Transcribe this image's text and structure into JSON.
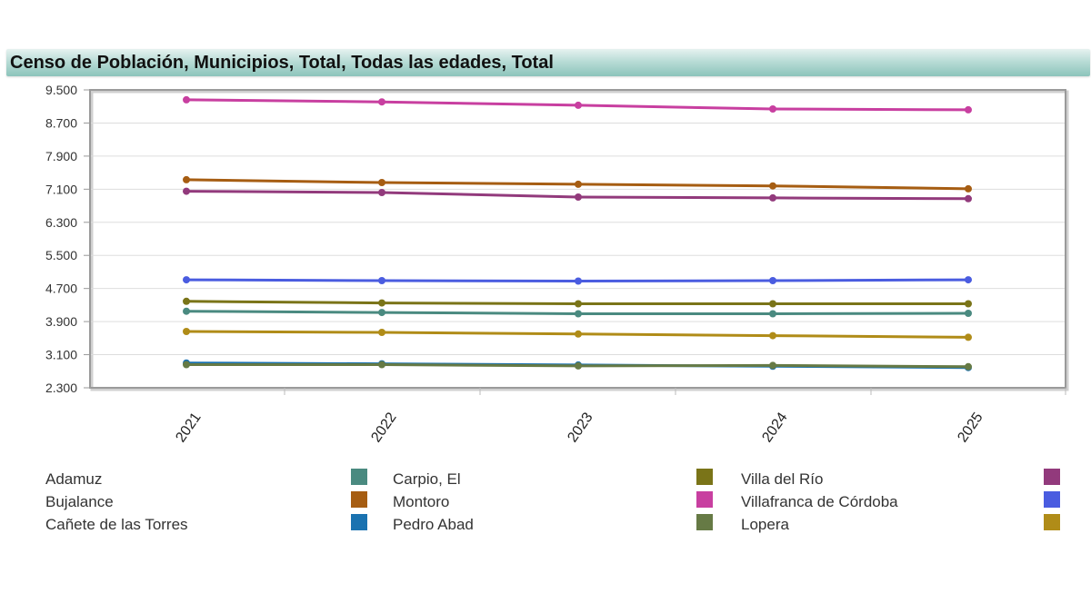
{
  "header": {
    "title": "Censo de Población, Municipios, Total, Todas las edades, Total"
  },
  "chart_data": {
    "type": "line",
    "title": "Censo de Población, Municipios, Total, Todas las edades, Total",
    "xlabel": "",
    "ylabel": "",
    "x": [
      "2021",
      "2022",
      "2023",
      "2024",
      "2025"
    ],
    "ylim": [
      2300,
      9500
    ],
    "yticks": [
      "9.500",
      "8.700",
      "7.900",
      "7.100",
      "6.300",
      "5.500",
      "4.700",
      "3.900",
      "3.100",
      "2.300"
    ],
    "grid": true,
    "legend_position": "bottom",
    "series": [
      {
        "name": "Adamuz",
        "color": "#4a8a80",
        "values": [
          4150,
          4120,
          4090,
          4090,
          4100
        ]
      },
      {
        "name": "Bujalance",
        "color": "#a65d12",
        "values": [
          7330,
          7260,
          7220,
          7180,
          7110
        ]
      },
      {
        "name": "Cañete de las Torres",
        "color": "#1a72b0",
        "values": [
          2900,
          2880,
          2850,
          2820,
          2790
        ]
      },
      {
        "name": "Carpio, El",
        "color": "#7a7418",
        "values": [
          4390,
          4350,
          4330,
          4330,
          4330
        ]
      },
      {
        "name": "Montoro",
        "color": "#c83fa0",
        "values": [
          9260,
          9210,
          9130,
          9040,
          9020
        ]
      },
      {
        "name": "Pedro Abad",
        "color": "#667a45",
        "values": [
          2860,
          2860,
          2830,
          2840,
          2810
        ]
      },
      {
        "name": "Villa del Río",
        "color": "#923a7c",
        "values": [
          7050,
          7020,
          6910,
          6890,
          6870
        ]
      },
      {
        "name": "Villafranca de Córdoba",
        "color": "#4a5ce0",
        "values": [
          4910,
          4890,
          4880,
          4890,
          4910
        ]
      },
      {
        "name": "Lopera",
        "color": "#b08c18",
        "values": [
          3660,
          3640,
          3600,
          3560,
          3520
        ]
      }
    ]
  },
  "legend": {
    "rows": [
      [
        {
          "name": "Adamuz",
          "color": "#4a8a80"
        },
        {
          "name": "Carpio, El",
          "color": "#7a7418"
        },
        {
          "name": "Villa del Río",
          "color": "#923a7c"
        }
      ],
      [
        {
          "name": "Bujalance",
          "color": "#a65d12"
        },
        {
          "name": "Montoro",
          "color": "#c83fa0"
        },
        {
          "name": "Villafranca de Córdoba",
          "color": "#4a5ce0"
        }
      ],
      [
        {
          "name": "Cañete de las Torres",
          "color": "#1a72b0"
        },
        {
          "name": "Pedro Abad",
          "color": "#667a45"
        },
        {
          "name": "Lopera",
          "color": "#b08c18"
        }
      ]
    ]
  }
}
